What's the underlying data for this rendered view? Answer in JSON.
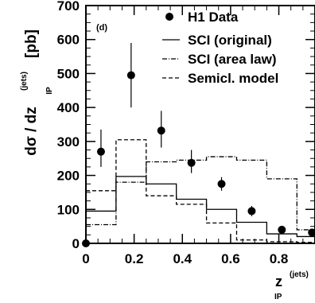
{
  "chart_data": {
    "type": "line",
    "panel_label": "(d)",
    "y_axis": {
      "label_main": "dσ / dz",
      "label_superscript": "(jets)",
      "label_subscript": "IP",
      "unit": "[pb]",
      "ylim": [
        0,
        700
      ],
      "ticks": [
        0,
        100,
        200,
        300,
        400,
        500,
        600,
        700
      ]
    },
    "x_axis": {
      "label_main": "z",
      "label_superscript": "(jets)",
      "label_subscript": "IP",
      "xlim": [
        0,
        0.95
      ],
      "ticks": [
        0,
        0.2,
        0.4,
        0.6,
        0.8
      ],
      "tick_labels": [
        "0",
        "0.2",
        "0.4",
        "0.6",
        "0.8"
      ]
    },
    "legend": {
      "placement": "top-right",
      "entries": [
        {
          "label": "H1 Data",
          "marker": "filled-circle"
        },
        {
          "label": "SCI (original)",
          "line_style": "solid"
        },
        {
          "label": "SCI (area law)",
          "line_style": "dash-dot"
        },
        {
          "label": "Semicl. model",
          "line_style": "dashed"
        }
      ]
    },
    "bin_edges": [
      0,
      0.125,
      0.25,
      0.375,
      0.5,
      0.625,
      0.75,
      0.875,
      0.95
    ],
    "data_points": [
      {
        "x": 0.0,
        "y": 0,
        "err_lo": 0,
        "err_hi": 0
      },
      {
        "x": 0.0625,
        "y": 270,
        "err_lo": 45,
        "err_hi": 65
      },
      {
        "x": 0.1875,
        "y": 495,
        "err_lo": 95,
        "err_hi": 95
      },
      {
        "x": 0.3125,
        "y": 332,
        "err_lo": 50,
        "err_hi": 58
      },
      {
        "x": 0.4375,
        "y": 237,
        "err_lo": 30,
        "err_hi": 38
      },
      {
        "x": 0.5625,
        "y": 175,
        "err_lo": 20,
        "err_hi": 20
      },
      {
        "x": 0.6875,
        "y": 95,
        "err_lo": 15,
        "err_hi": 15
      },
      {
        "x": 0.8125,
        "y": 40,
        "err_lo": 5,
        "err_hi": 5
      },
      {
        "x": 0.9375,
        "y": 32,
        "err_lo": 8,
        "err_hi": 8
      }
    ],
    "series": [
      {
        "name": "SCI (original)",
        "style": "solid",
        "values": [
          95,
          197,
          175,
          130,
          100,
          62,
          28,
          20
        ]
      },
      {
        "name": "SCI (area law)",
        "style": "dash-dot",
        "values": [
          55,
          180,
          240,
          245,
          255,
          245,
          190,
          40
        ]
      },
      {
        "name": "Semicl. model",
        "style": "dashed",
        "values": [
          155,
          305,
          140,
          115,
          60,
          10,
          5,
          3
        ]
      }
    ]
  }
}
